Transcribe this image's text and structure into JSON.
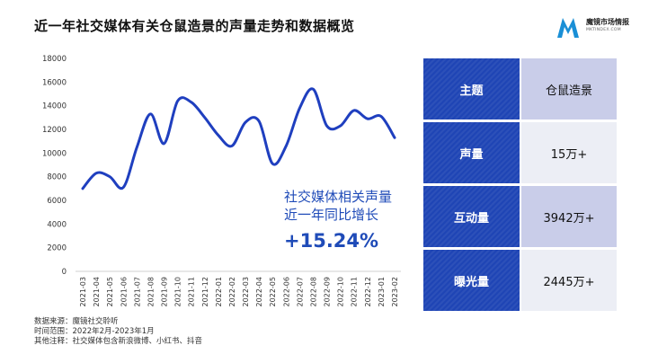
{
  "title": "近一年社交媒体有关仓鼠造景的声量走势和数据概览",
  "logo": {
    "name": "魔镜市场情报",
    "sub": "MKTINDEX.COM",
    "color": "#1a8fd6"
  },
  "chart_data": {
    "type": "line",
    "categories": [
      "2021-03",
      "2021-04",
      "2021-05",
      "2021-06",
      "2021-07",
      "2021-08",
      "2021-09",
      "2021-10",
      "2021-11",
      "2021-12",
      "2022-01",
      "2022-02",
      "2022-03",
      "2022-04",
      "2022-05",
      "2022-06",
      "2022-07",
      "2022-08",
      "2022-09",
      "2022-10",
      "2022-11",
      "2022-12",
      "2023-01",
      "2023-02"
    ],
    "values": [
      7000,
      8300,
      8000,
      7100,
      10500,
      13300,
      10800,
      14400,
      14300,
      13000,
      11500,
      10600,
      12600,
      12700,
      9100,
      10600,
      13800,
      15400,
      12300,
      12300,
      13600,
      12900,
      13100,
      11300
    ],
    "ylim": [
      0,
      18000
    ],
    "yticks": [
      0,
      2000,
      4000,
      6000,
      8000,
      10000,
      12000,
      14000,
      16000,
      18000
    ],
    "color": "#1f3fbf",
    "grid": false
  },
  "annotation": {
    "line1": "社交媒体相关声量",
    "line2": "近一年同比增长",
    "growth": "+15.24%"
  },
  "table": [
    {
      "key": "主题",
      "value": "仓鼠造景"
    },
    {
      "key": "声量",
      "value": "15万+"
    },
    {
      "key": "互动量",
      "value": "3942万+"
    },
    {
      "key": "曝光量",
      "value": "2445万+"
    }
  ],
  "footer": {
    "source": "数据来源：魔镜社交聆听",
    "range": "时间范围：2022年2月-2023年1月",
    "note": "其他注释：社交媒体包含新浪微博、小红书、抖音"
  }
}
